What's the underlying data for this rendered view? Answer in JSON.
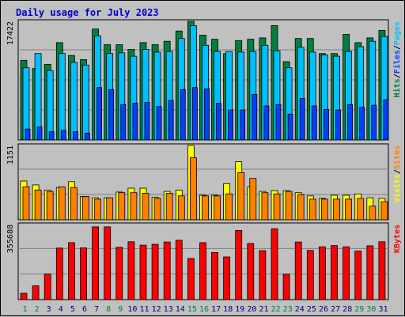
{
  "title": "Daily usage for July 2023",
  "colors": {
    "hits": "#008040",
    "files": "#00c0ff",
    "pages": "#0040ff",
    "visits": "#ffff00",
    "sites": "#ff8000",
    "kbytes": "#ff0000",
    "weekend": "#008040",
    "weekday": "#000080",
    "title": "#0000cc"
  },
  "chart_data": {
    "type": "bar",
    "title": "Daily usage for July 2023",
    "categories": [
      "1",
      "2",
      "3",
      "4",
      "5",
      "6",
      "7",
      "8",
      "9",
      "10",
      "11",
      "12",
      "13",
      "14",
      "15",
      "16",
      "17",
      "18",
      "19",
      "20",
      "21",
      "22",
      "23",
      "24",
      "25",
      "26",
      "27",
      "28",
      "29",
      "30",
      "31"
    ],
    "weekend_days": [
      "1",
      "2",
      "8",
      "9",
      "15",
      "16",
      "22",
      "23",
      "29",
      "30"
    ],
    "panels": [
      {
        "id": "hits",
        "scale_label": "17422",
        "ymax": 17422,
        "labels": [
          {
            "text": "Hits",
            "color": "#008040"
          },
          {
            "text": "/",
            "color": "#000000"
          },
          {
            "text": "Files",
            "color": "#0040ff"
          },
          {
            "text": "/",
            "color": "#000000"
          },
          {
            "text": "Pages",
            "color": "#00c0ff"
          }
        ],
        "series": [
          {
            "name": "Hits",
            "color": "#008040",
            "values": [
              11700,
              10500,
              11100,
              14300,
              12400,
              11800,
              16300,
              14000,
              14000,
              13300,
              14300,
              14000,
              14500,
              16000,
              17422,
              15400,
              14800,
              12700,
              14600,
              14800,
              15000,
              16800,
              11500,
              14900,
              14900,
              12700,
              12700,
              15500,
              14300,
              15000,
              16100
            ]
          },
          {
            "name": "Files",
            "color": "#00c0ff",
            "values": [
              10600,
              12700,
              10200,
              12700,
              11400,
              11000,
              15300,
              12700,
              12800,
              12300,
              13300,
              12900,
              13000,
              14900,
              16800,
              13900,
              13000,
              13000,
              12900,
              13000,
              13900,
              13100,
              10600,
              13600,
              12900,
              12500,
              12300,
              13000,
              13700,
              14500,
              15200
            ]
          },
          {
            "name": "Pages",
            "color": "#0040ff",
            "values": [
              1600,
              1900,
              1200,
              1400,
              1200,
              1000,
              7700,
              7400,
              5200,
              5400,
              5500,
              4900,
              5800,
              7400,
              7700,
              7500,
              5400,
              4400,
              4400,
              6700,
              5000,
              5200,
              3800,
              6100,
              5000,
              4500,
              4400,
              5200,
              4800,
              5100,
              5900
            ]
          }
        ]
      },
      {
        "id": "visits",
        "scale_label": "1151",
        "ymax": 1151,
        "labels": [
          {
            "text": "Visits",
            "color": "#ffff00"
          },
          {
            "text": "/",
            "color": "#000000"
          },
          {
            "text": "Sites",
            "color": "#ff8000"
          }
        ],
        "series": [
          {
            "name": "Visits",
            "color": "#ffff00",
            "values": [
              600,
              540,
              460,
              500,
              590,
              360,
              340,
              340,
              430,
              490,
              490,
              350,
              440,
              460,
              1151,
              380,
              380,
              560,
              900,
              510,
              440,
              450,
              450,
              420,
              370,
              330,
              380,
              380,
              400,
              340,
              330
            ]
          },
          {
            "name": "Sites",
            "color": "#ff8000",
            "values": [
              510,
              460,
              440,
              510,
              500,
              360,
              320,
              340,
              420,
              420,
              410,
              330,
              410,
              370,
              960,
              370,
              370,
              400,
              730,
              640,
              420,
              400,
              440,
              390,
              320,
              320,
              320,
              320,
              330,
              210,
              280
            ]
          }
        ]
      },
      {
        "id": "kbytes",
        "scale_label": "355688",
        "ymax": 355688,
        "labels": [
          {
            "text": "KBytes",
            "color": "#ff0000"
          }
        ],
        "series": [
          {
            "name": "KBytes",
            "color": "#ff0000",
            "values": [
              30000,
              65000,
              121000,
              244000,
              270000,
              245000,
              345000,
              345000,
              248000,
              274000,
              258000,
              262000,
              273000,
              281000,
              195000,
              270000,
              223000,
              202000,
              328000,
              266000,
              232000,
              335000,
              120000,
              273000,
              233000,
              250000,
              256000,
              250000,
              230000,
              255000,
              274000
            ]
          }
        ]
      }
    ]
  }
}
